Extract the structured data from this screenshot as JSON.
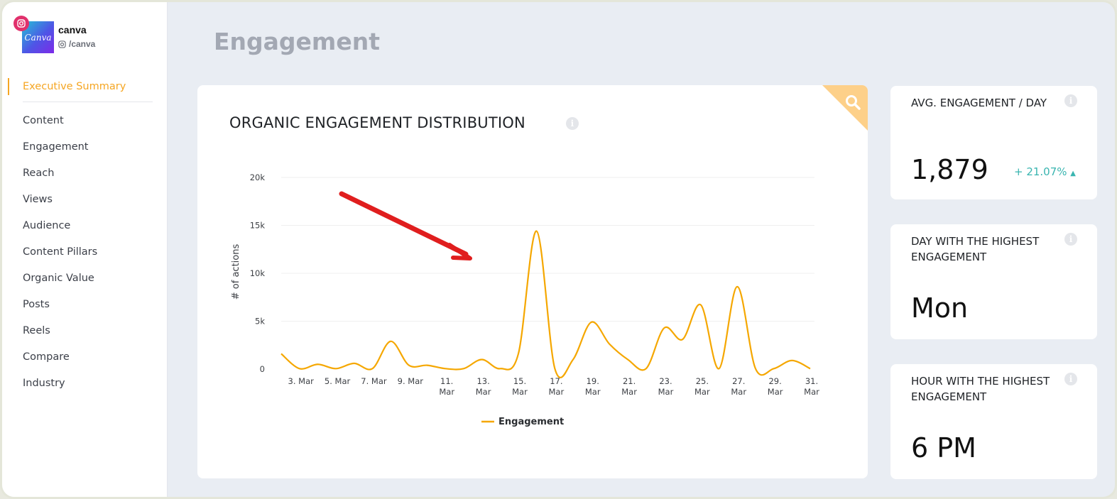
{
  "profile": {
    "logo_text": "Canva",
    "name": "canva",
    "handle": "/canva"
  },
  "nav": {
    "active": "Executive Summary",
    "items": [
      "Content",
      "Engagement",
      "Reach",
      "Views",
      "Audience",
      "Content Pillars",
      "Organic Value",
      "Posts",
      "Reels",
      "Compare",
      "Industry"
    ]
  },
  "page": {
    "title": "Engagement"
  },
  "chart_card": {
    "title": "ORGANIC ENGAGEMENT DISTRIBUTION",
    "info_icon": "info-icon",
    "corner_icon": "search-icon"
  },
  "stats": [
    {
      "label": "AVG. ENGAGEMENT / DAY",
      "value": "1,879",
      "change": "+ 21.07%"
    },
    {
      "label": "DAY WITH THE HIGHEST ENGAGEMENT",
      "value": "Mon"
    },
    {
      "label": "HOUR WITH THE HIGHEST ENGAGEMENT",
      "value": "6 PM"
    }
  ],
  "colors": {
    "accent": "#f5a623",
    "line": "#f5a700",
    "positive": "#3ab5b0",
    "arrow": "#e01e1e",
    "corner": "#fdd089"
  },
  "chart_data": {
    "type": "line",
    "ylabel": "# of actions",
    "ylim": [
      0,
      20000
    ],
    "y_ticks": [
      0,
      5000,
      10000,
      15000,
      20000
    ],
    "y_tick_labels": [
      "0",
      "5k",
      "10k",
      "15k",
      "20k"
    ],
    "x_ticks": [
      {
        "day": 3,
        "lines": [
          "3. Mar"
        ]
      },
      {
        "day": 5,
        "lines": [
          "5. Mar"
        ]
      },
      {
        "day": 7,
        "lines": [
          "7. Mar"
        ]
      },
      {
        "day": 9,
        "lines": [
          "9. Mar"
        ]
      },
      {
        "day": 11,
        "lines": [
          "11.",
          "Mar"
        ]
      },
      {
        "day": 13,
        "lines": [
          "13.",
          "Mar"
        ]
      },
      {
        "day": 15,
        "lines": [
          "15.",
          "Mar"
        ]
      },
      {
        "day": 17,
        "lines": [
          "17.",
          "Mar"
        ]
      },
      {
        "day": 19,
        "lines": [
          "19.",
          "Mar"
        ]
      },
      {
        "day": 21,
        "lines": [
          "21.",
          "Mar"
        ]
      },
      {
        "day": 23,
        "lines": [
          "23.",
          "Mar"
        ]
      },
      {
        "day": 25,
        "lines": [
          "25.",
          "Mar"
        ]
      },
      {
        "day": 27,
        "lines": [
          "27.",
          "Mar"
        ]
      },
      {
        "day": 29,
        "lines": [
          "29.",
          "Mar"
        ]
      },
      {
        "day": 31,
        "lines": [
          "31.",
          "Mar"
        ]
      }
    ],
    "xlim": [
      2,
      31
    ],
    "series": [
      {
        "name": "Engagement",
        "x": [
          2,
          3,
          4,
          5,
          6,
          7,
          8,
          9,
          10,
          11,
          12,
          13,
          14,
          15,
          16,
          17,
          18,
          19,
          20,
          21,
          22,
          23,
          24,
          25,
          26,
          27,
          28,
          29,
          30,
          31
        ],
        "values": [
          1600,
          50,
          500,
          50,
          600,
          50,
          2900,
          400,
          400,
          50,
          50,
          1000,
          50,
          1600,
          14400,
          50,
          1000,
          4900,
          2600,
          1000,
          50,
          4300,
          3100,
          6700,
          50,
          8600,
          50,
          50,
          900,
          50
        ]
      }
    ]
  }
}
